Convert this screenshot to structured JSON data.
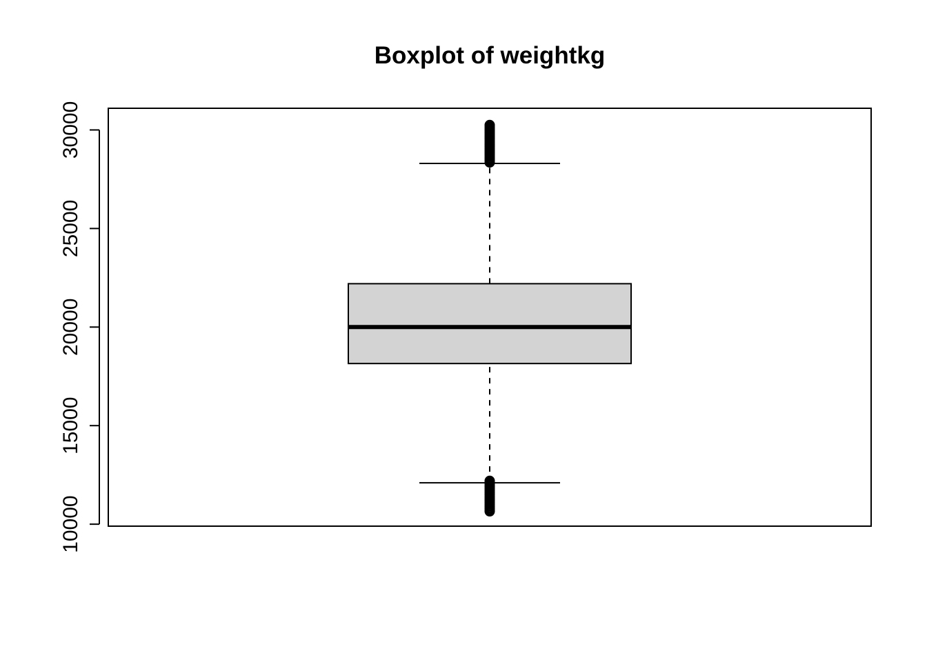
{
  "chart_data": {
    "type": "boxplot",
    "title": "Boxplot of weightkg",
    "xlabel": "",
    "ylabel": "",
    "ylim": [
      9900,
      31100
    ],
    "y_ticks": [
      10000,
      15000,
      20000,
      25000,
      30000
    ],
    "y_tick_labels": [
      "10000",
      "15000",
      "20000",
      "25000",
      "30000"
    ],
    "box": {
      "whisker_low": 12100,
      "q1": 18150,
      "median": 20000,
      "q3": 22200,
      "whisker_high": 28300
    },
    "outliers_low": [
      12200,
      12100,
      12000,
      11900,
      11800,
      11700,
      11600,
      11500,
      11400,
      11300,
      11200,
      11100,
      11000,
      10900,
      10800,
      10700,
      10650
    ],
    "outliers_high": [
      28350,
      28450,
      28550,
      28650,
      28750,
      28850,
      28950,
      29050,
      29150,
      29250,
      29350,
      29450,
      29550,
      29650,
      29750,
      29850,
      29950,
      30050,
      30150,
      30250
    ],
    "box_fill": "#d3d3d3",
    "line_color": "#000000",
    "grid": false
  }
}
